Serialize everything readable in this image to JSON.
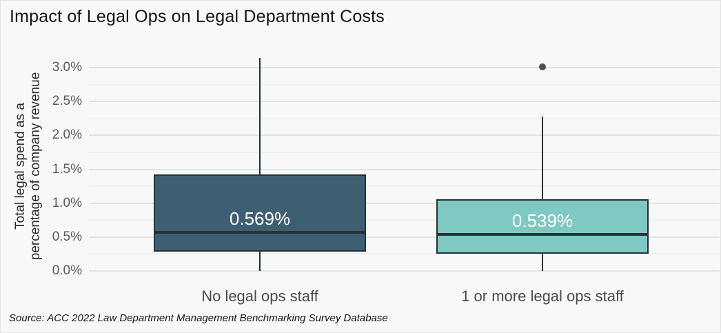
{
  "chart_data": {
    "type": "boxplot",
    "title": "Impact of Legal Ops on Legal Department Costs",
    "ylabel": "Total legal spend as a percentage of company revenue",
    "ylabel_lines": [
      "Total legal spend as a",
      "percentage of company revenue"
    ],
    "xlabel": "",
    "source": "Source: ACC 2022 Law Department Management Benchmarking Survey Database",
    "ylim": [
      0,
      3.2
    ],
    "yticks": [
      0.0,
      0.5,
      1.0,
      1.5,
      2.0,
      2.5,
      3.0
    ],
    "ytick_labels": [
      "0.0%",
      "0.5%",
      "1.0%",
      "1.5%",
      "2.0%",
      "2.5%",
      "3.0%"
    ],
    "minor_yticks": [
      0.25,
      0.75,
      1.25,
      1.75,
      2.25,
      2.75
    ],
    "grid": true,
    "legend": false,
    "categories": [
      "No legal ops staff",
      "1 or more legal ops staff"
    ],
    "series": [
      {
        "category": "No legal ops staff",
        "whisker_low": 0.0,
        "q1": 0.28,
        "median": 0.569,
        "q3": 1.42,
        "whisker_high": 3.14,
        "median_label": "0.569%",
        "outliers": [],
        "fill_color": "#3e5f72"
      },
      {
        "category": "1 or more legal ops staff",
        "whisker_low": 0.0,
        "q1": 0.25,
        "median": 0.539,
        "q3": 1.06,
        "whisker_high": 2.28,
        "median_label": "0.539%",
        "outliers": [
          3.01
        ],
        "fill_color": "#7fc9c2"
      }
    ]
  },
  "colors": {
    "background": "#f8f8f8",
    "grid_major": "#e3e3e3",
    "grid_minor": "#f0f0f0",
    "stroke": "#243238",
    "outlier": "#4f4f4f",
    "title_text": "#141414",
    "tick_text": "#5a5a5a",
    "category_text": "#4a4a4a",
    "median_label_text": "#ffffff"
  }
}
